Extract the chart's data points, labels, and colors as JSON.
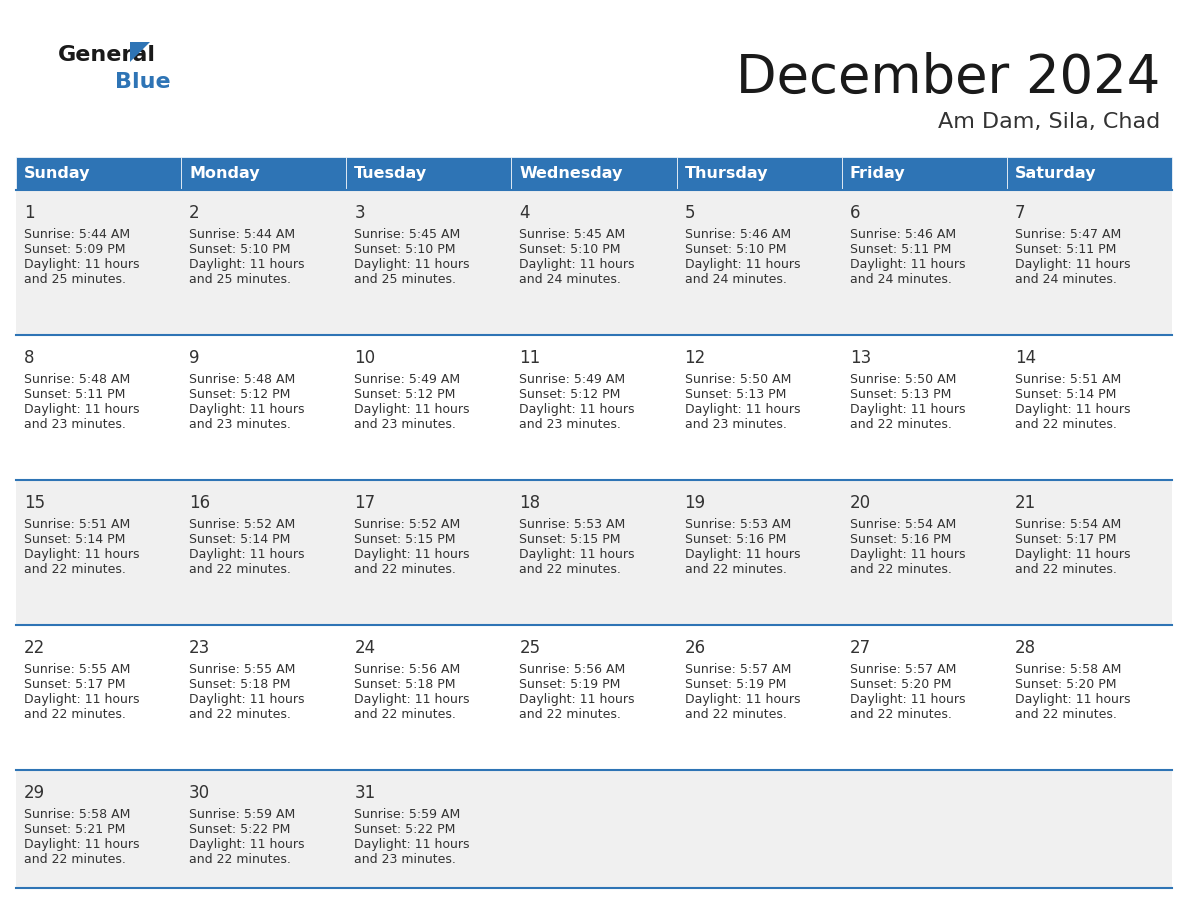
{
  "title": "December 2024",
  "subtitle": "Am Dam, Sila, Chad",
  "header_color": "#2E74B5",
  "header_text_color": "#FFFFFF",
  "days_of_week": [
    "Sunday",
    "Monday",
    "Tuesday",
    "Wednesday",
    "Thursday",
    "Friday",
    "Saturday"
  ],
  "bg_color": "#FFFFFF",
  "alt_row_color": "#F0F0F0",
  "cell_text_color": "#333333",
  "line_color": "#2E74B5",
  "days": [
    {
      "day": 1,
      "col": 0,
      "row": 0,
      "sunrise": "5:44 AM",
      "sunset": "5:09 PM",
      "daylight_hours": 11,
      "daylight_minutes": 25
    },
    {
      "day": 2,
      "col": 1,
      "row": 0,
      "sunrise": "5:44 AM",
      "sunset": "5:10 PM",
      "daylight_hours": 11,
      "daylight_minutes": 25
    },
    {
      "day": 3,
      "col": 2,
      "row": 0,
      "sunrise": "5:45 AM",
      "sunset": "5:10 PM",
      "daylight_hours": 11,
      "daylight_minutes": 25
    },
    {
      "day": 4,
      "col": 3,
      "row": 0,
      "sunrise": "5:45 AM",
      "sunset": "5:10 PM",
      "daylight_hours": 11,
      "daylight_minutes": 24
    },
    {
      "day": 5,
      "col": 4,
      "row": 0,
      "sunrise": "5:46 AM",
      "sunset": "5:10 PM",
      "daylight_hours": 11,
      "daylight_minutes": 24
    },
    {
      "day": 6,
      "col": 5,
      "row": 0,
      "sunrise": "5:46 AM",
      "sunset": "5:11 PM",
      "daylight_hours": 11,
      "daylight_minutes": 24
    },
    {
      "day": 7,
      "col": 6,
      "row": 0,
      "sunrise": "5:47 AM",
      "sunset": "5:11 PM",
      "daylight_hours": 11,
      "daylight_minutes": 24
    },
    {
      "day": 8,
      "col": 0,
      "row": 1,
      "sunrise": "5:48 AM",
      "sunset": "5:11 PM",
      "daylight_hours": 11,
      "daylight_minutes": 23
    },
    {
      "day": 9,
      "col": 1,
      "row": 1,
      "sunrise": "5:48 AM",
      "sunset": "5:12 PM",
      "daylight_hours": 11,
      "daylight_minutes": 23
    },
    {
      "day": 10,
      "col": 2,
      "row": 1,
      "sunrise": "5:49 AM",
      "sunset": "5:12 PM",
      "daylight_hours": 11,
      "daylight_minutes": 23
    },
    {
      "day": 11,
      "col": 3,
      "row": 1,
      "sunrise": "5:49 AM",
      "sunset": "5:12 PM",
      "daylight_hours": 11,
      "daylight_minutes": 23
    },
    {
      "day": 12,
      "col": 4,
      "row": 1,
      "sunrise": "5:50 AM",
      "sunset": "5:13 PM",
      "daylight_hours": 11,
      "daylight_minutes": 23
    },
    {
      "day": 13,
      "col": 5,
      "row": 1,
      "sunrise": "5:50 AM",
      "sunset": "5:13 PM",
      "daylight_hours": 11,
      "daylight_minutes": 22
    },
    {
      "day": 14,
      "col": 6,
      "row": 1,
      "sunrise": "5:51 AM",
      "sunset": "5:14 PM",
      "daylight_hours": 11,
      "daylight_minutes": 22
    },
    {
      "day": 15,
      "col": 0,
      "row": 2,
      "sunrise": "5:51 AM",
      "sunset": "5:14 PM",
      "daylight_hours": 11,
      "daylight_minutes": 22
    },
    {
      "day": 16,
      "col": 1,
      "row": 2,
      "sunrise": "5:52 AM",
      "sunset": "5:14 PM",
      "daylight_hours": 11,
      "daylight_minutes": 22
    },
    {
      "day": 17,
      "col": 2,
      "row": 2,
      "sunrise": "5:52 AM",
      "sunset": "5:15 PM",
      "daylight_hours": 11,
      "daylight_minutes": 22
    },
    {
      "day": 18,
      "col": 3,
      "row": 2,
      "sunrise": "5:53 AM",
      "sunset": "5:15 PM",
      "daylight_hours": 11,
      "daylight_minutes": 22
    },
    {
      "day": 19,
      "col": 4,
      "row": 2,
      "sunrise": "5:53 AM",
      "sunset": "5:16 PM",
      "daylight_hours": 11,
      "daylight_minutes": 22
    },
    {
      "day": 20,
      "col": 5,
      "row": 2,
      "sunrise": "5:54 AM",
      "sunset": "5:16 PM",
      "daylight_hours": 11,
      "daylight_minutes": 22
    },
    {
      "day": 21,
      "col": 6,
      "row": 2,
      "sunrise": "5:54 AM",
      "sunset": "5:17 PM",
      "daylight_hours": 11,
      "daylight_minutes": 22
    },
    {
      "day": 22,
      "col": 0,
      "row": 3,
      "sunrise": "5:55 AM",
      "sunset": "5:17 PM",
      "daylight_hours": 11,
      "daylight_minutes": 22
    },
    {
      "day": 23,
      "col": 1,
      "row": 3,
      "sunrise": "5:55 AM",
      "sunset": "5:18 PM",
      "daylight_hours": 11,
      "daylight_minutes": 22
    },
    {
      "day": 24,
      "col": 2,
      "row": 3,
      "sunrise": "5:56 AM",
      "sunset": "5:18 PM",
      "daylight_hours": 11,
      "daylight_minutes": 22
    },
    {
      "day": 25,
      "col": 3,
      "row": 3,
      "sunrise": "5:56 AM",
      "sunset": "5:19 PM",
      "daylight_hours": 11,
      "daylight_minutes": 22
    },
    {
      "day": 26,
      "col": 4,
      "row": 3,
      "sunrise": "5:57 AM",
      "sunset": "5:19 PM",
      "daylight_hours": 11,
      "daylight_minutes": 22
    },
    {
      "day": 27,
      "col": 5,
      "row": 3,
      "sunrise": "5:57 AM",
      "sunset": "5:20 PM",
      "daylight_hours": 11,
      "daylight_minutes": 22
    },
    {
      "day": 28,
      "col": 6,
      "row": 3,
      "sunrise": "5:58 AM",
      "sunset": "5:20 PM",
      "daylight_hours": 11,
      "daylight_minutes": 22
    },
    {
      "day": 29,
      "col": 0,
      "row": 4,
      "sunrise": "5:58 AM",
      "sunset": "5:21 PM",
      "daylight_hours": 11,
      "daylight_minutes": 22
    },
    {
      "day": 30,
      "col": 1,
      "row": 4,
      "sunrise": "5:59 AM",
      "sunset": "5:22 PM",
      "daylight_hours": 11,
      "daylight_minutes": 22
    },
    {
      "day": 31,
      "col": 2,
      "row": 4,
      "sunrise": "5:59 AM",
      "sunset": "5:22 PM",
      "daylight_hours": 11,
      "daylight_minutes": 23
    }
  ],
  "num_rows": 5,
  "title_fontsize": 38,
  "subtitle_fontsize": 16,
  "header_fontsize": 11.5,
  "day_num_fontsize": 12,
  "cell_fontsize": 9
}
